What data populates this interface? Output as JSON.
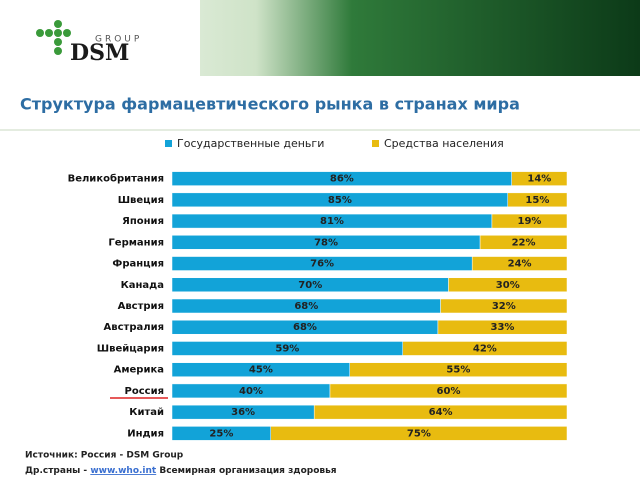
{
  "logo": {
    "group": "GROUP",
    "name": "DSM"
  },
  "chart_data": {
    "type": "stacked-bar-100",
    "title": "Структура фармацевтического рынка в странах мира",
    "categories": [
      "Великобритания",
      "Швеция",
      "Япония",
      "Германия",
      "Франция",
      "Канада",
      "Австрия",
      "Австралия",
      "Швейцария",
      "Америка",
      "Россия",
      "Китай",
      "Индия"
    ],
    "series": [
      {
        "name": "Государственные деньги",
        "color": "#12a3d8",
        "values": [
          86,
          85,
          81,
          78,
          76,
          70,
          68,
          68,
          59,
          45,
          40,
          36,
          25
        ],
        "value_labels": [
          "86%",
          "85%",
          "81%",
          "78%",
          "76%",
          "70%",
          "68%",
          "68%",
          "59%",
          "45%",
          "40%",
          "36%",
          "25%"
        ]
      },
      {
        "name": "Средства населения",
        "color": "#e8bb10",
        "values": [
          14,
          15,
          19,
          22,
          24,
          30,
          32,
          33,
          42,
          55,
          60,
          64,
          75
        ],
        "value_labels": [
          "14%",
          "15%",
          "19%",
          "22%",
          "24%",
          "30%",
          "32%",
          "33%",
          "42%",
          "55%",
          "60%",
          "64%",
          "75%"
        ]
      }
    ],
    "legend": "top"
  },
  "footer": {
    "source": "Источник: Россия - DSM Group",
    "other_prefix": "Др.страны - ",
    "link": "www.who.int",
    "other_suffix": " Всемирная организация здоровья"
  }
}
